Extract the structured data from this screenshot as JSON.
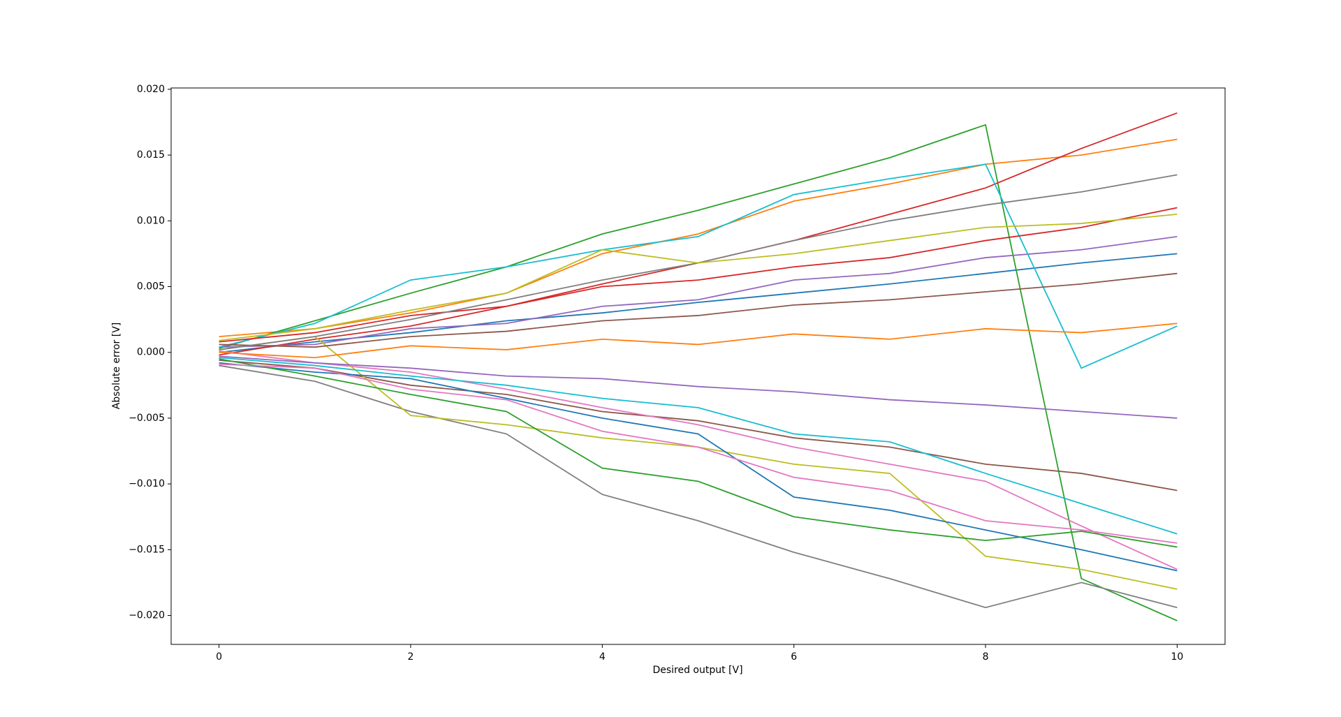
{
  "chart_data": {
    "type": "line",
    "xlabel": "Desired output [V]",
    "ylabel": "Absolute error [V]",
    "x": [
      0,
      1,
      2,
      3,
      4,
      5,
      6,
      7,
      8,
      9,
      10
    ],
    "xlim": [
      -0.5,
      10.5
    ],
    "xticks": [
      0,
      2,
      4,
      6,
      8,
      10
    ],
    "ylim": [
      -0.0222,
      0.0201
    ],
    "yticks": [
      {
        "value": -0.02,
        "label": "−0.020"
      },
      {
        "value": -0.015,
        "label": "−0.015"
      },
      {
        "value": -0.01,
        "label": "−0.010"
      },
      {
        "value": -0.005,
        "label": "−0.005"
      },
      {
        "value": 0,
        "label": "0.000"
      },
      {
        "value": 0.005,
        "label": "0.005"
      },
      {
        "value": 0.01,
        "label": "0.010"
      },
      {
        "value": 0.015,
        "label": "0.015"
      },
      {
        "value": 0.02,
        "label": "0.020"
      }
    ],
    "grid": false,
    "series": [
      {
        "color": "#1f77b4",
        "values": [
          0,
          0.0008,
          0.0015,
          0.0024,
          0.003,
          0.0038,
          0.0045,
          0.0052,
          0.006,
          0.0068,
          0.0075
        ]
      },
      {
        "color": "#ff7f0e",
        "values": [
          0.0012,
          0.0018,
          0.003,
          0.0045,
          0.0075,
          0.009,
          0.0115,
          0.0128,
          0.0143,
          0.015,
          0.0162
        ]
      },
      {
        "color": "#2ca02c",
        "values": [
          0.0003,
          0.0024,
          0.0045,
          0.0065,
          0.009,
          0.0108,
          0.0128,
          0.0148,
          0.0173,
          -0.0172,
          -0.0204
        ]
      },
      {
        "color": "#d62728",
        "values": [
          -0.0002,
          0.001,
          0.002,
          0.0035,
          0.0052,
          0.0068,
          0.0085,
          0.0105,
          0.0125,
          0.0155,
          0.0182
        ]
      },
      {
        "color": "#9467bd",
        "values": [
          0.0004,
          0.0006,
          0.0018,
          0.0022,
          0.0035,
          0.004,
          0.0055,
          0.006,
          0.0072,
          0.0078,
          0.0088
        ]
      },
      {
        "color": "#8c564b",
        "values": [
          -0.0006,
          -0.0012,
          -0.0025,
          -0.0032,
          -0.0045,
          -0.0052,
          -0.0065,
          -0.0072,
          -0.0085,
          -0.0092,
          -0.0105
        ]
      },
      {
        "color": "#e377c2",
        "values": [
          0.0001,
          -0.0008,
          -0.0015,
          -0.0028,
          -0.0042,
          -0.0055,
          -0.0072,
          -0.0085,
          -0.0098,
          -0.0132,
          -0.0165
        ]
      },
      {
        "color": "#7f7f7f",
        "values": [
          -0.001,
          -0.0022,
          -0.0045,
          -0.0062,
          -0.0108,
          -0.0128,
          -0.0152,
          -0.0172,
          -0.0194,
          -0.0175,
          -0.0194
        ]
      },
      {
        "color": "#bcbd22",
        "values": [
          0.0002,
          0.0012,
          -0.0048,
          -0.0055,
          -0.0065,
          -0.0072,
          -0.0085,
          -0.0092,
          -0.0155,
          -0.0165,
          -0.018
        ]
      },
      {
        "color": "#17becf",
        "values": [
          0.0004,
          0.0022,
          0.0055,
          0.0065,
          0.0078,
          0.0088,
          0.012,
          0.0132,
          0.0143,
          -0.0012,
          0.002
        ]
      },
      {
        "color": "#1f77b4",
        "values": [
          -0.0008,
          -0.0015,
          -0.002,
          -0.0035,
          -0.005,
          -0.0062,
          -0.011,
          -0.012,
          -0.0135,
          -0.015,
          -0.0166
        ]
      },
      {
        "color": "#ff7f0e",
        "values": [
          0,
          -0.0004,
          0.0005,
          0.0002,
          0.001,
          0.0006,
          0.0014,
          0.001,
          0.0018,
          0.0015,
          0.0022
        ]
      },
      {
        "color": "#2ca02c",
        "values": [
          -0.0005,
          -0.0018,
          -0.0032,
          -0.0045,
          -0.0088,
          -0.0098,
          -0.0125,
          -0.0135,
          -0.0143,
          -0.0136,
          -0.0148
        ]
      },
      {
        "color": "#d62728",
        "values": [
          0.0008,
          0.0015,
          0.0028,
          0.0035,
          0.005,
          0.0055,
          0.0065,
          0.0072,
          0.0085,
          0.0095,
          0.011
        ]
      },
      {
        "color": "#9467bd",
        "values": [
          -0.0003,
          -0.0008,
          -0.0012,
          -0.0018,
          -0.002,
          -0.0026,
          -0.003,
          -0.0036,
          -0.004,
          -0.0045,
          -0.005
        ]
      },
      {
        "color": "#8c564b",
        "values": [
          0.0006,
          0.0004,
          0.0012,
          0.0016,
          0.0024,
          0.0028,
          0.0036,
          0.004,
          0.0046,
          0.0052,
          0.006
        ]
      },
      {
        "color": "#e377c2",
        "values": [
          -0.0009,
          -0.0012,
          -0.0028,
          -0.0036,
          -0.006,
          -0.0072,
          -0.0095,
          -0.0105,
          -0.0128,
          -0.0135,
          -0.0145
        ]
      },
      {
        "color": "#7f7f7f",
        "values": [
          0.0002,
          0.0012,
          0.0025,
          0.004,
          0.0055,
          0.0068,
          0.0085,
          0.01,
          0.0112,
          0.0122,
          0.0135
        ]
      },
      {
        "color": "#bcbd22",
        "values": [
          0.0009,
          0.0018,
          0.0032,
          0.0045,
          0.0078,
          0.0068,
          0.0075,
          0.0085,
          0.0095,
          0.0098,
          0.0105
        ]
      },
      {
        "color": "#17becf",
        "values": [
          -0.0004,
          -0.001,
          -0.0018,
          -0.0025,
          -0.0035,
          -0.0042,
          -0.0062,
          -0.0068,
          -0.0092,
          -0.0115,
          -0.0138
        ]
      }
    ]
  }
}
